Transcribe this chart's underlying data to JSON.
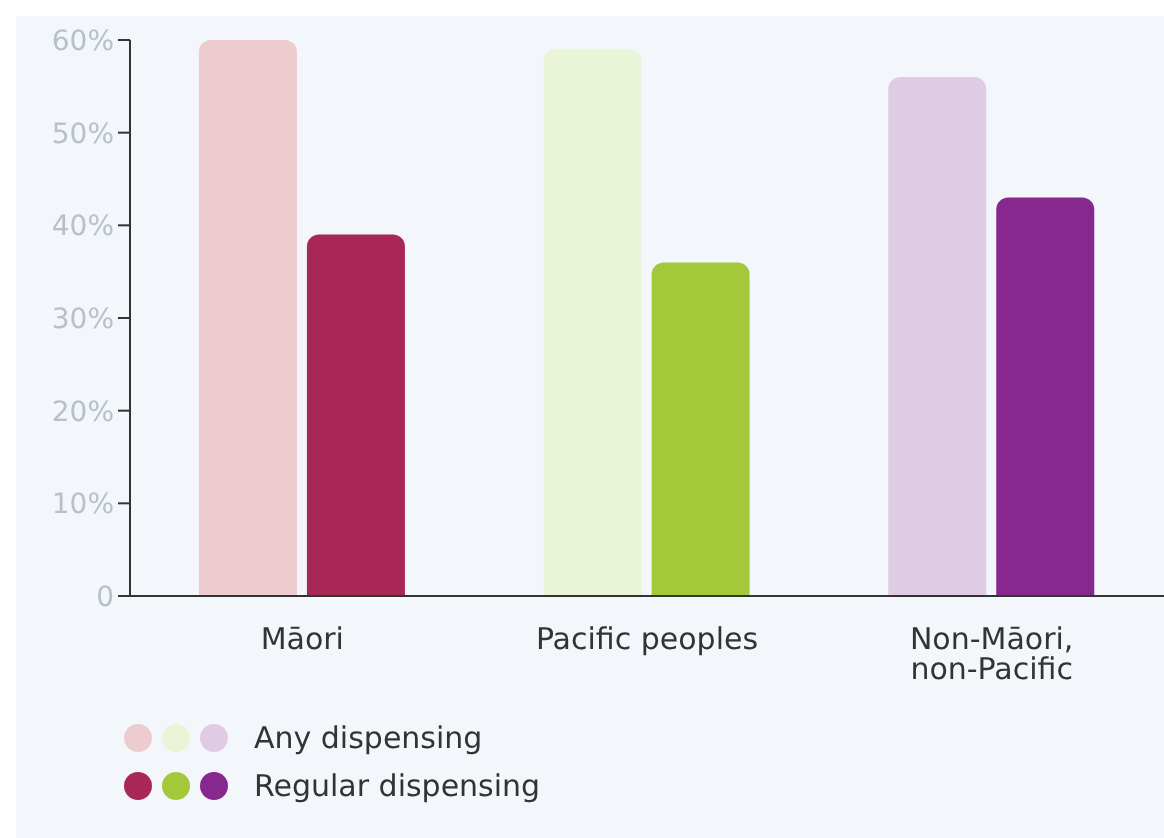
{
  "chart_data": {
    "type": "bar",
    "categories": [
      "Māori",
      "Pacific peoples",
      "Non-Māori, non-Pacific"
    ],
    "series": [
      {
        "name": "Any dispensing",
        "colors": [
          "#ecccce",
          "#eaf4d6",
          "#e0cbe5"
        ],
        "values": [
          60,
          59,
          56
        ]
      },
      {
        "name": "Regular dispensing",
        "colors": [
          "#a82754",
          "#a3c93a",
          "#87288f"
        ],
        "values": [
          39,
          36,
          43
        ]
      }
    ],
    "ylim": [
      0,
      60
    ],
    "yticks": [
      {
        "value": 0,
        "label": "0"
      },
      {
        "value": 10,
        "label": "10%"
      },
      {
        "value": 20,
        "label": "20%"
      },
      {
        "value": 30,
        "label": "30%"
      },
      {
        "value": 40,
        "label": "40%"
      },
      {
        "value": 50,
        "label": "50%"
      },
      {
        "value": 60,
        "label": "60%"
      }
    ],
    "grid": false,
    "legend": "bottom left"
  }
}
